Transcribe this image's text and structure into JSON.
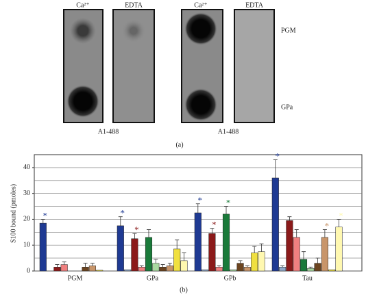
{
  "panel_a": {
    "column_labels": [
      "Ca²⁺",
      "EDTA",
      "Ca²⁺",
      "EDTA"
    ],
    "row_labels": [
      "PGM",
      "GPa"
    ],
    "antibody_labels": [
      "A1-488",
      "A1-488"
    ],
    "caption": "(a)"
  },
  "chart_data": {
    "type": "bar",
    "caption": "(b)",
    "y_label": "S100 bound (pmoles)",
    "categories": [
      "PGM",
      "GPa",
      "GPb",
      "Tau"
    ],
    "series": [
      {
        "color": "#1f3a93",
        "values": [
          18.5,
          17.5,
          22.5,
          36
        ],
        "errors": [
          1.5,
          3.5,
          3.5,
          7
        ]
      },
      {
        "color": "#8fa8c8",
        "values": [
          0,
          0.5,
          0.5,
          1.5
        ],
        "errors": [
          0,
          0,
          0,
          0.5
        ]
      },
      {
        "color": "#8b1a1a",
        "values": [
          1.5,
          12.5,
          14.5,
          19.5
        ],
        "errors": [
          1,
          2,
          2,
          1.5
        ]
      },
      {
        "color": "#f08080",
        "values": [
          2.5,
          1.5,
          1.5,
          13
        ],
        "errors": [
          1,
          0.5,
          0.5,
          3
        ]
      },
      {
        "color": "#1a7a3a",
        "values": [
          0,
          13,
          22,
          4.5
        ],
        "errors": [
          0,
          3,
          3,
          3
        ]
      },
      {
        "color": "#a8d8a0",
        "values": [
          0,
          3,
          0.5,
          1
        ],
        "errors": [
          0,
          1.5,
          0,
          0.5
        ]
      },
      {
        "color": "#6b4420",
        "values": [
          1.5,
          1.5,
          3,
          3
        ],
        "errors": [
          1.5,
          1,
          1,
          2
        ]
      },
      {
        "color": "#c8956a",
        "values": [
          2,
          2,
          1.5,
          13
        ],
        "errors": [
          1,
          1,
          0.5,
          3
        ]
      },
      {
        "color": "#f0e040",
        "values": [
          0.3,
          8.5,
          7,
          0.5
        ],
        "errors": [
          0,
          3.5,
          2.5,
          0
        ]
      },
      {
        "color": "#fff8b0",
        "values": [
          0,
          4,
          7.5,
          17
        ],
        "errors": [
          0,
          3,
          3,
          3
        ]
      }
    ],
    "annotations": [
      {
        "text": "*",
        "series": 0,
        "category": 0
      },
      {
        "text": "*",
        "series": 0,
        "category": 1
      },
      {
        "text": "*",
        "series": 2,
        "category": 1
      },
      {
        "text": "*",
        "series": 0,
        "category": 2
      },
      {
        "text": "*",
        "series": 2,
        "category": 2
      },
      {
        "text": "*",
        "series": 4,
        "category": 2
      },
      {
        "text": "*",
        "series": 0,
        "category": 3
      },
      {
        "text": "*",
        "series": 7,
        "category": 3
      },
      {
        "text": "*",
        "series": 9,
        "category": 3
      }
    ],
    "ylim": [
      0,
      45
    ],
    "yticks": [
      0,
      10,
      20,
      30,
      40
    ],
    "yminor": [
      5,
      15,
      25,
      35
    ],
    "grid": true
  }
}
